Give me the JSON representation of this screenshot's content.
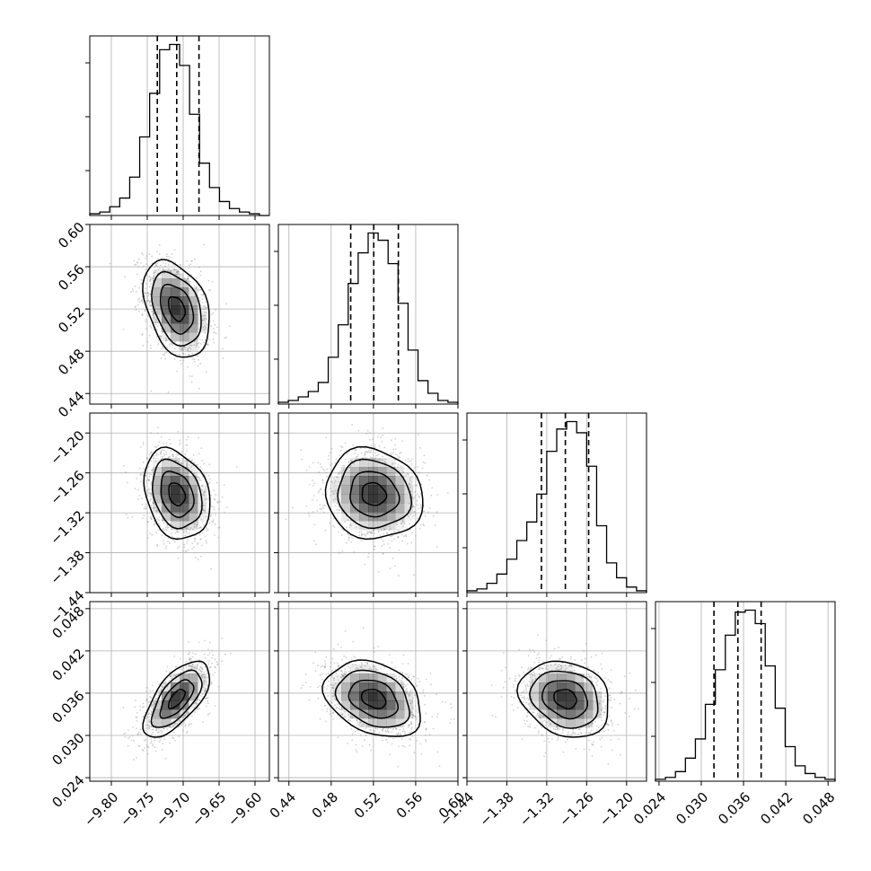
{
  "chart_data": {
    "type": "corner",
    "parameters": [
      {
        "range": [
          -9.83,
          -9.58
        ],
        "ticks": [
          -9.8,
          -9.75,
          -9.7,
          -9.65,
          -9.6
        ],
        "tick_labels": [
          "−9.80",
          "−9.75",
          "−9.70",
          "−9.65",
          "−9.60"
        ],
        "quantiles": [
          -9.736,
          -9.709,
          -9.678
        ],
        "hist_counts": [
          1,
          2,
          5,
          10,
          22,
          45,
          70,
          95,
          98,
          86,
          58,
          30,
          16,
          8,
          4,
          2,
          1,
          0
        ]
      },
      {
        "range": [
          0.43,
          0.6
        ],
        "ticks": [
          0.44,
          0.48,
          0.52,
          0.56,
          0.6
        ],
        "tick_labels": [
          "0.44",
          "0.48",
          "0.52",
          "0.56",
          "0.60"
        ],
        "quantiles": [
          0.4985,
          0.5203,
          0.5436
        ],
        "hist_counts": [
          1,
          2,
          4,
          7,
          12,
          26,
          44,
          67,
          84,
          95,
          91,
          78,
          56,
          30,
          13,
          6,
          2,
          1
        ]
      },
      {
        "range": [
          -1.44,
          -1.17
        ],
        "ticks": [
          -1.44,
          -1.38,
          -1.32,
          -1.26,
          -1.2
        ],
        "tick_labels": [
          "−1.44",
          "−1.38",
          "−1.32",
          "−1.26",
          "−1.20"
        ],
        "quantiles": [
          -1.328,
          -1.292,
          -1.257
        ],
        "hist_counts": [
          1,
          2,
          5,
          10,
          18,
          28,
          38,
          53,
          76,
          88,
          92,
          86,
          68,
          36,
          16,
          8,
          3,
          1
        ]
      },
      {
        "range": [
          0.0235,
          0.049
        ],
        "ticks": [
          0.024,
          0.03,
          0.036,
          0.042,
          0.048
        ],
        "tick_labels": [
          "0.024",
          "0.030",
          "0.036",
          "0.042",
          "0.048"
        ],
        "quantiles": [
          0.0318,
          0.0352,
          0.0385
        ],
        "hist_counts": [
          1,
          2,
          5,
          12,
          22,
          40,
          58,
          76,
          88,
          89,
          82,
          60,
          38,
          18,
          8,
          4,
          2,
          1
        ]
      }
    ],
    "pairs": [
      {
        "x": 0,
        "y": 1,
        "mean": [
          -9.709,
          0.5203
        ],
        "sd": [
          0.023,
          0.023
        ],
        "corr": -0.35
      },
      {
        "x": 0,
        "y": 2,
        "mean": [
          -9.709,
          -1.292
        ],
        "sd": [
          0.023,
          0.034
        ],
        "corr": -0.25
      },
      {
        "x": 1,
        "y": 2,
        "mean": [
          0.5203,
          -1.292
        ],
        "sd": [
          0.023,
          0.034
        ],
        "corr": -0.1
      },
      {
        "x": 0,
        "y": 3,
        "mean": [
          -9.709,
          0.0352
        ],
        "sd": [
          0.023,
          0.0027
        ],
        "corr": 0.65
      },
      {
        "x": 1,
        "y": 3,
        "mean": [
          0.5203,
          0.0352
        ],
        "sd": [
          0.023,
          0.0027
        ],
        "corr": -0.3
      },
      {
        "x": 2,
        "y": 3,
        "mean": [
          -1.292,
          0.0352
        ],
        "sd": [
          0.034,
          0.0027
        ],
        "corr": -0.2
      }
    ],
    "contour_levels_sigma": [
      0.5,
      1.0,
      1.5,
      2.0
    ],
    "grid": true,
    "colors": {
      "hist": "#000000",
      "grid": "#b0b0b0",
      "points": "#999999",
      "density": "#000000"
    }
  }
}
